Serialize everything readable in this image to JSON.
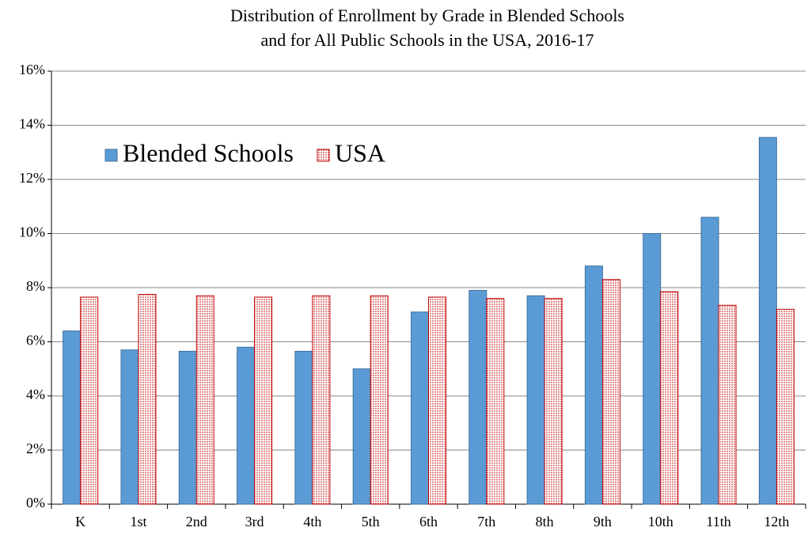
{
  "chart_data": {
    "type": "bar",
    "title": [
      "Distribution of Enrollment by Grade in Blended Schools",
      "and for All Public Schools in the USA, 2016-17"
    ],
    "categories": [
      "K",
      "1st",
      "2nd",
      "3rd",
      "4th",
      "5th",
      "6th",
      "7th",
      "8th",
      "9th",
      "10th",
      "11th",
      "12th"
    ],
    "series": [
      {
        "name": "Blended Schools",
        "color": "#5b9bd5",
        "values": [
          6.4,
          5.7,
          5.65,
          5.8,
          5.65,
          5.0,
          7.1,
          7.9,
          7.7,
          8.8,
          10.0,
          10.6,
          13.55
        ]
      },
      {
        "name": "USA",
        "color": "#c00000",
        "pattern": "dots",
        "values": [
          7.65,
          7.75,
          7.7,
          7.65,
          7.7,
          7.7,
          7.65,
          7.6,
          7.6,
          8.3,
          7.85,
          7.35,
          7.2
        ]
      }
    ],
    "ylim": [
      0,
      16
    ],
    "yticks": [
      {
        "value": 0,
        "label": "0%"
      },
      {
        "value": 2,
        "label": "2%"
      },
      {
        "value": 4,
        "label": "4%"
      },
      {
        "value": 6,
        "label": "6%"
      },
      {
        "value": 8,
        "label": "8%"
      },
      {
        "value": 10,
        "label": "10%"
      },
      {
        "value": 12,
        "label": "12%"
      },
      {
        "value": 14,
        "label": "14%"
      },
      {
        "value": 16,
        "label": "16%"
      }
    ],
    "grid": true,
    "legend": "upper left"
  }
}
